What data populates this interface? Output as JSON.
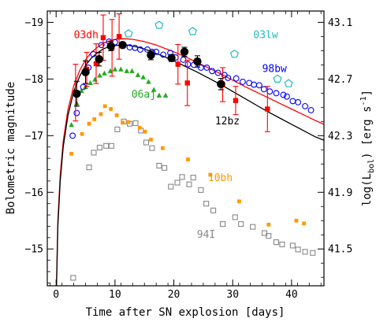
{
  "chart_data": {
    "type": "scatter",
    "xlabel": "Time after SN explosion [days]",
    "ylabel_left": "Bolometric magnitude",
    "ylabel_right": "log(L_bol) [erg s^-1]",
    "ylabel_right_parts": {
      "log": "log(L",
      "sub": "bol",
      "unit": ") [erg s",
      "exp": "-1",
      "close": "]"
    },
    "xlim": [
      -1.5,
      45.5
    ],
    "ylim": [
      -14.35,
      -19.2
    ],
    "x_ticks": [
      0,
      10,
      20,
      30,
      40
    ],
    "x_tick_labels": [
      "0",
      "10",
      "20",
      "30",
      "40"
    ],
    "y_ticks": [
      -15,
      -16,
      -17,
      -18,
      -19
    ],
    "y_tick_labels": [
      "−15",
      "−16",
      "−17",
      "−18",
      "−19"
    ],
    "y_right_ticks": [
      41.5,
      41.9,
      42.3,
      42.7,
      43.1
    ],
    "y_right_tick_labels": [
      "41.5",
      "41.9",
      "42.3",
      "42.7",
      "43.1"
    ],
    "colors": {
      "03dh": "#ff0000",
      "03lw": "#22bbbb",
      "98bw": "#0000ff",
      "06aj": "#22aa22",
      "12bz": "#000000",
      "10bh": "#ff9900",
      "94I": "#888888"
    },
    "series": [
      {
        "name": "03dh",
        "marker": "filled-square",
        "color": "#ff0000",
        "errorbars": true,
        "x": [
          3.3,
          5.2,
          6.8,
          8.0,
          9.5,
          10.7,
          20.7,
          22.3,
          28.3,
          30.5,
          35.9
        ],
        "y": [
          -17.76,
          -18.17,
          -18.27,
          -18.73,
          -18.55,
          -18.75,
          -18.26,
          -17.93,
          -17.9,
          -17.62,
          -17.47
        ],
        "err": [
          0.5,
          0.3,
          0.35,
          0.4,
          0.5,
          0.4,
          0.35,
          0.4,
          0.3,
          0.25,
          0.4
        ]
      },
      {
        "name": "12bz",
        "marker": "filled-circle",
        "color": "#000000",
        "errorbars": true,
        "x": [
          3.5,
          5.0,
          7.3,
          9.3,
          11.3,
          16.1,
          19.6,
          21.8,
          24.0,
          28.0
        ],
        "y": [
          -17.74,
          -18.12,
          -18.35,
          -18.58,
          -18.6,
          -18.42,
          -18.37,
          -18.48,
          -18.31,
          -17.91
        ],
        "err": [
          0.22,
          0.2,
          0.12,
          0.08,
          0.05,
          0.08,
          0.06,
          0.08,
          0.1,
          0.1
        ]
      },
      {
        "name": "03lw",
        "marker": "open-pentagon",
        "color": "#22bbbb",
        "x": [
          12.3,
          17.5,
          23.2,
          30.3,
          37.6,
          39.5
        ],
        "y": [
          -18.8,
          -18.95,
          -18.84,
          -18.44,
          -18.0,
          -17.92
        ]
      },
      {
        "name": "98bw",
        "marker": "open-circle",
        "color": "#0000ff",
        "x": [
          2.8,
          3.5,
          4.6,
          5.5,
          6.3,
          7.7,
          9.0,
          10.0,
          11.2,
          12.5,
          13.4,
          14.3,
          15.5,
          16.3,
          17.0,
          18.2,
          19.4,
          20.3,
          21.6,
          22.4,
          23.4,
          24.6,
          25.6,
          26.5,
          27.5,
          28.6,
          29.2,
          30.6,
          31.7,
          32.8,
          33.6,
          34.5,
          35.3,
          36.3,
          37.4,
          38.6,
          39.2,
          40.2,
          41.1,
          42.3,
          43.3
        ],
        "y": [
          -17.0,
          -17.4,
          -17.86,
          -18.2,
          -18.44,
          -18.6,
          -18.66,
          -18.65,
          -18.61,
          -18.56,
          -18.55,
          -18.52,
          -18.52,
          -18.48,
          -18.48,
          -18.43,
          -18.46,
          -18.38,
          -18.34,
          -18.26,
          -18.25,
          -18.2,
          -18.2,
          -18.14,
          -18.11,
          -18.07,
          -18.02,
          -18.01,
          -17.95,
          -17.93,
          -17.9,
          -17.89,
          -17.82,
          -17.78,
          -17.75,
          -17.72,
          -17.69,
          -17.61,
          -17.59,
          -17.52,
          -17.45
        ]
      },
      {
        "name": "06aj",
        "marker": "filled-triangle",
        "color": "#22aa22",
        "x": [
          2.6,
          3.5,
          4.3,
          5.0,
          5.8,
          6.6,
          7.4,
          8.2,
          9.2,
          10.0,
          11.0,
          12.0,
          12.9,
          13.9,
          14.8,
          15.7,
          16.6,
          17.5,
          18.6
        ],
        "y": [
          -17.19,
          -17.57,
          -17.79,
          -17.86,
          -17.93,
          -17.99,
          -18.06,
          -18.1,
          -18.14,
          -18.17,
          -18.17,
          -18.14,
          -18.14,
          -18.07,
          -18.03,
          -17.95,
          -17.81,
          -17.71,
          -17.71
        ]
      },
      {
        "name": "10bh",
        "marker": "filled-square-small",
        "color": "#ff9900",
        "x": [
          2.6,
          4.4,
          5.6,
          6.5,
          7.6,
          8.3,
          9.3,
          10.3,
          11.3,
          12.3,
          14.2,
          15.1,
          16.1,
          18.1,
          22.4,
          26.2,
          31.1,
          36.1,
          40.8,
          42.1
        ],
        "y": [
          -16.68,
          -17.03,
          -17.21,
          -17.29,
          -17.38,
          -17.52,
          -17.47,
          -17.36,
          -17.23,
          -17.24,
          -17.14,
          -17.07,
          -16.93,
          -16.78,
          -16.58,
          -16.31,
          -15.84,
          -15.43,
          -15.5,
          -15.45
        ]
      },
      {
        "name": "94I",
        "marker": "open-square",
        "color": "#888888",
        "x": [
          2.9,
          5.6,
          6.4,
          7.4,
          8.5,
          9.4,
          10.4,
          11.5,
          12.5,
          13.5,
          14.4,
          15.3,
          16.3,
          17.5,
          18.4,
          19.5,
          20.6,
          21.4,
          22.6,
          23.3,
          24.6,
          25.5,
          26.7,
          28.3,
          30.4,
          31.4,
          33.4,
          35.4,
          36.1,
          37.4,
          38.4,
          40.2,
          41.1,
          42.3,
          43.6
        ],
        "y": [
          -14.49,
          -16.44,
          -16.7,
          -16.79,
          -16.82,
          -16.82,
          -17.11,
          -17.25,
          -17.21,
          -17.22,
          -17.09,
          -16.88,
          -16.78,
          -16.47,
          -16.43,
          -16.1,
          -16.17,
          -16.27,
          -16.14,
          -16.26,
          -16.04,
          -15.8,
          -15.68,
          -15.44,
          -15.56,
          -15.44,
          -15.39,
          -15.28,
          -15.23,
          -15.12,
          -15.08,
          -15.06,
          -14.99,
          -14.95,
          -14.93
        ]
      }
    ],
    "model_curves": [
      {
        "color": "#ff0000",
        "x": [
          0.05,
          0.3,
          0.7,
          1.2,
          2.0,
          3.0,
          4.0,
          5.0,
          6.0,
          7.0,
          8.0,
          9.0,
          10.0,
          11.0,
          12.0,
          13.0,
          14.0,
          15.0,
          16.0,
          17.0,
          18.0,
          20.0,
          22.0,
          24.0,
          26.0,
          28.0,
          30.0,
          32.0,
          34.0,
          36.0,
          38.0,
          40.0,
          42.0,
          44.0,
          45.5
        ],
        "y": [
          -14.3,
          -15.5,
          -16.3,
          -16.9,
          -17.45,
          -17.88,
          -18.15,
          -18.34,
          -18.47,
          -18.56,
          -18.63,
          -18.67,
          -18.7,
          -18.71,
          -18.71,
          -18.7,
          -18.68,
          -18.66,
          -18.63,
          -18.6,
          -18.56,
          -18.48,
          -18.39,
          -18.29,
          -18.19,
          -18.09,
          -17.98,
          -17.87,
          -17.77,
          -17.67,
          -17.57,
          -17.47,
          -17.37,
          -17.27,
          -17.2
        ]
      },
      {
        "color": "#000000",
        "x": [
          0.05,
          0.3,
          0.7,
          1.2,
          2.0,
          3.0,
          4.0,
          5.0,
          6.0,
          7.0,
          8.0,
          9.0,
          10.0,
          11.0,
          12.0,
          13.0,
          14.0,
          15.0,
          16.0,
          17.0,
          18.0,
          20.0,
          22.0,
          24.0,
          26.0,
          28.0,
          30.0,
          32.0,
          34.0,
          36.0,
          38.0,
          40.0,
          42.0,
          44.0,
          45.5
        ],
        "y": [
          -14.3,
          -15.4,
          -16.2,
          -16.8,
          -17.35,
          -17.78,
          -18.05,
          -18.24,
          -18.37,
          -18.46,
          -18.53,
          -18.57,
          -18.59,
          -18.6,
          -18.6,
          -18.58,
          -18.56,
          -18.53,
          -18.49,
          -18.45,
          -18.41,
          -18.32,
          -18.22,
          -18.12,
          -18.01,
          -17.9,
          -17.78,
          -17.66,
          -17.54,
          -17.42,
          -17.31,
          -17.2,
          -17.09,
          -16.98,
          -16.92
        ]
      }
    ],
    "labels": [
      {
        "text": "03dh",
        "color": "#ff0000",
        "x": 3.0,
        "y": -18.72
      },
      {
        "text": "03lw",
        "color": "#22bbbb",
        "x": 33.5,
        "y": -18.72
      },
      {
        "text": "98bw",
        "color": "#0000ff",
        "x": 35.0,
        "y": -18.12
      },
      {
        "text": "06aj",
        "color": "#22aa22",
        "x": 12.8,
        "y": -17.67
      },
      {
        "text": "12bz",
        "color": "#000000",
        "x": 27.0,
        "y": -17.2
      },
      {
        "text": "10bh",
        "color": "#ff9900",
        "x": 25.8,
        "y": -16.2
      },
      {
        "text": "94I",
        "color": "#888888",
        "x": 23.9,
        "y": -15.2
      }
    ]
  }
}
